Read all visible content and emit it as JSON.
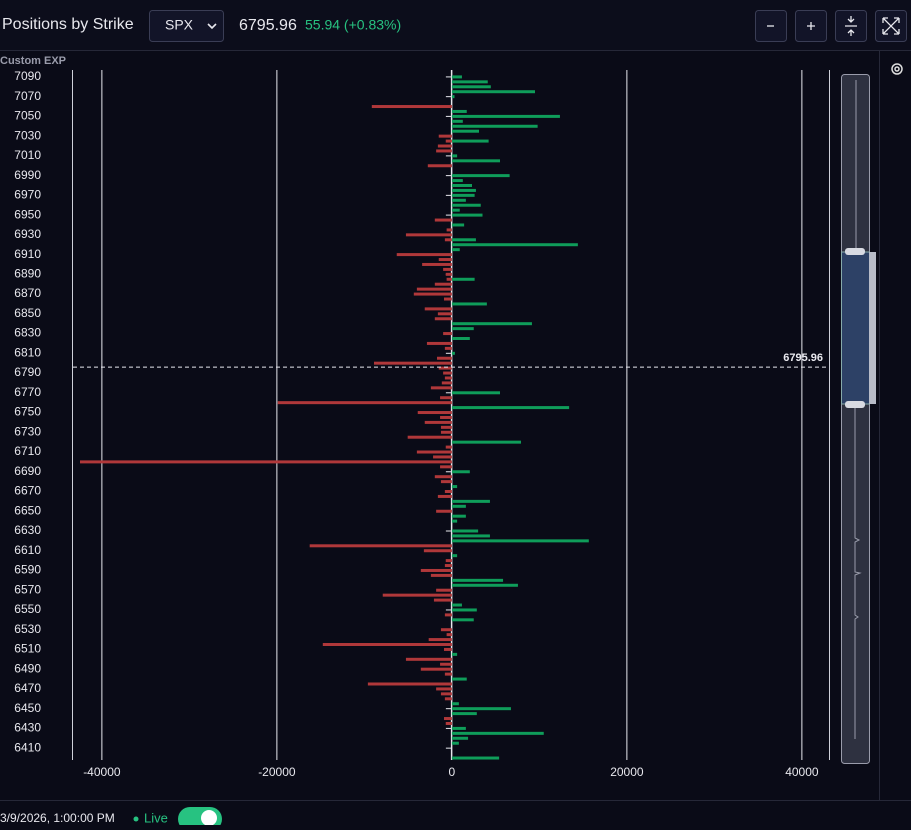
{
  "header": {
    "title": "Positions by Strike",
    "symbol": "SPX",
    "price": "6795.96",
    "change": "55.94 (+0.83%)"
  },
  "panel_label": "Custom EXP",
  "footer": {
    "timestamp": "3/9/2026, 1:00:00 PM",
    "live": "Live"
  },
  "chart_data": {
    "type": "hbar",
    "xlim": [
      -43300,
      43100
    ],
    "xticks": [
      -40000,
      -20000,
      0,
      20000,
      40000
    ],
    "ylim": [
      6398,
      7097
    ],
    "yticks": [
      7090,
      7070,
      7050,
      7030,
      7010,
      6990,
      6970,
      6950,
      6930,
      6910,
      6890,
      6870,
      6850,
      6830,
      6810,
      6790,
      6770,
      6750,
      6730,
      6710,
      6690,
      6670,
      6650,
      6630,
      6610,
      6590,
      6570,
      6550,
      6530,
      6510,
      6490,
      6470,
      6450,
      6430,
      6410
    ],
    "grid": true,
    "spot": 6795.96,
    "series": [
      {
        "color": "#0f9d5a",
        "y": [
          7090,
          7085,
          7080,
          7075,
          7070,
          7055,
          7050,
          7045,
          7040,
          7035,
          7025,
          7010,
          7005,
          6990,
          6985,
          6980,
          6975,
          6970,
          6965,
          6960,
          6955,
          6950,
          6940,
          6925,
          6920,
          6915,
          6885,
          6860,
          6840,
          6835,
          6825,
          6810,
          6770,
          6755,
          6720,
          6690,
          6675,
          6660,
          6655,
          6645,
          6640,
          6630,
          6625,
          6620,
          6605,
          6580,
          6575,
          6555,
          6550,
          6540,
          6505,
          6480,
          6455,
          6450,
          6445,
          6430,
          6425,
          6420,
          6415,
          6400
        ],
        "values": [
          1150,
          4100,
          4450,
          9500,
          300,
          1700,
          12350,
          1250,
          9800,
          3100,
          4200,
          600,
          5500,
          6600,
          1250,
          2300,
          2750,
          2600,
          1600,
          3300,
          900,
          3500,
          1400,
          2750,
          14400,
          900,
          2600,
          4000,
          9150,
          2500,
          2050,
          350,
          5500,
          13400,
          7900,
          2050,
          600,
          4350,
          1600,
          1600,
          600,
          3000,
          4350,
          15650,
          600,
          5850,
          7550,
          1150,
          2850,
          2500,
          600,
          1700,
          800,
          6750,
          2850,
          1600,
          10500,
          1850,
          800,
          5400
        ]
      },
      {
        "color": "#b0383a",
        "y": [
          7060,
          7030,
          7025,
          7020,
          7015,
          7000,
          6945,
          6935,
          6930,
          6925,
          6910,
          6905,
          6900,
          6895,
          6890,
          6885,
          6880,
          6875,
          6870,
          6865,
          6855,
          6850,
          6845,
          6830,
          6820,
          6815,
          6805,
          6800,
          6795,
          6790,
          6785,
          6780,
          6775,
          6765,
          6760,
          6750,
          6745,
          6740,
          6735,
          6730,
          6725,
          6715,
          6710,
          6705,
          6700,
          6695,
          6685,
          6680,
          6670,
          6665,
          6650,
          6615,
          6610,
          6600,
          6595,
          6590,
          6585,
          6570,
          6565,
          6560,
          6545,
          6530,
          6525,
          6520,
          6515,
          6510,
          6500,
          6495,
          6490,
          6485,
          6475,
          6470,
          6465,
          6460,
          6440,
          6435
        ],
        "values": [
          -9150,
          -1500,
          -700,
          -1600,
          -1800,
          -2750,
          -1950,
          -600,
          -5250,
          -800,
          -6300,
          -1500,
          -3400,
          -1000,
          -700,
          -600,
          -1950,
          -4000,
          -4350,
          -900,
          -3100,
          -1600,
          -1950,
          -1000,
          -2850,
          -800,
          -1700,
          -8900,
          -1500,
          -1000,
          -800,
          -1150,
          -2400,
          -1350,
          -19900,
          -3900,
          -1350,
          -3100,
          -1250,
          -1250,
          -5050,
          -700,
          -4000,
          -2150,
          -42500,
          -1350,
          -1950,
          -1250,
          -800,
          -1600,
          -1800,
          -16250,
          -3200,
          -700,
          -800,
          -3550,
          -2400,
          -1800,
          -7900,
          -2050,
          -800,
          -1250,
          -600,
          -2650,
          -14750,
          -900,
          -5250,
          -1350,
          -3550,
          -800,
          -9600,
          -1800,
          -1250,
          -800,
          -900,
          -700
        ]
      }
    ]
  }
}
